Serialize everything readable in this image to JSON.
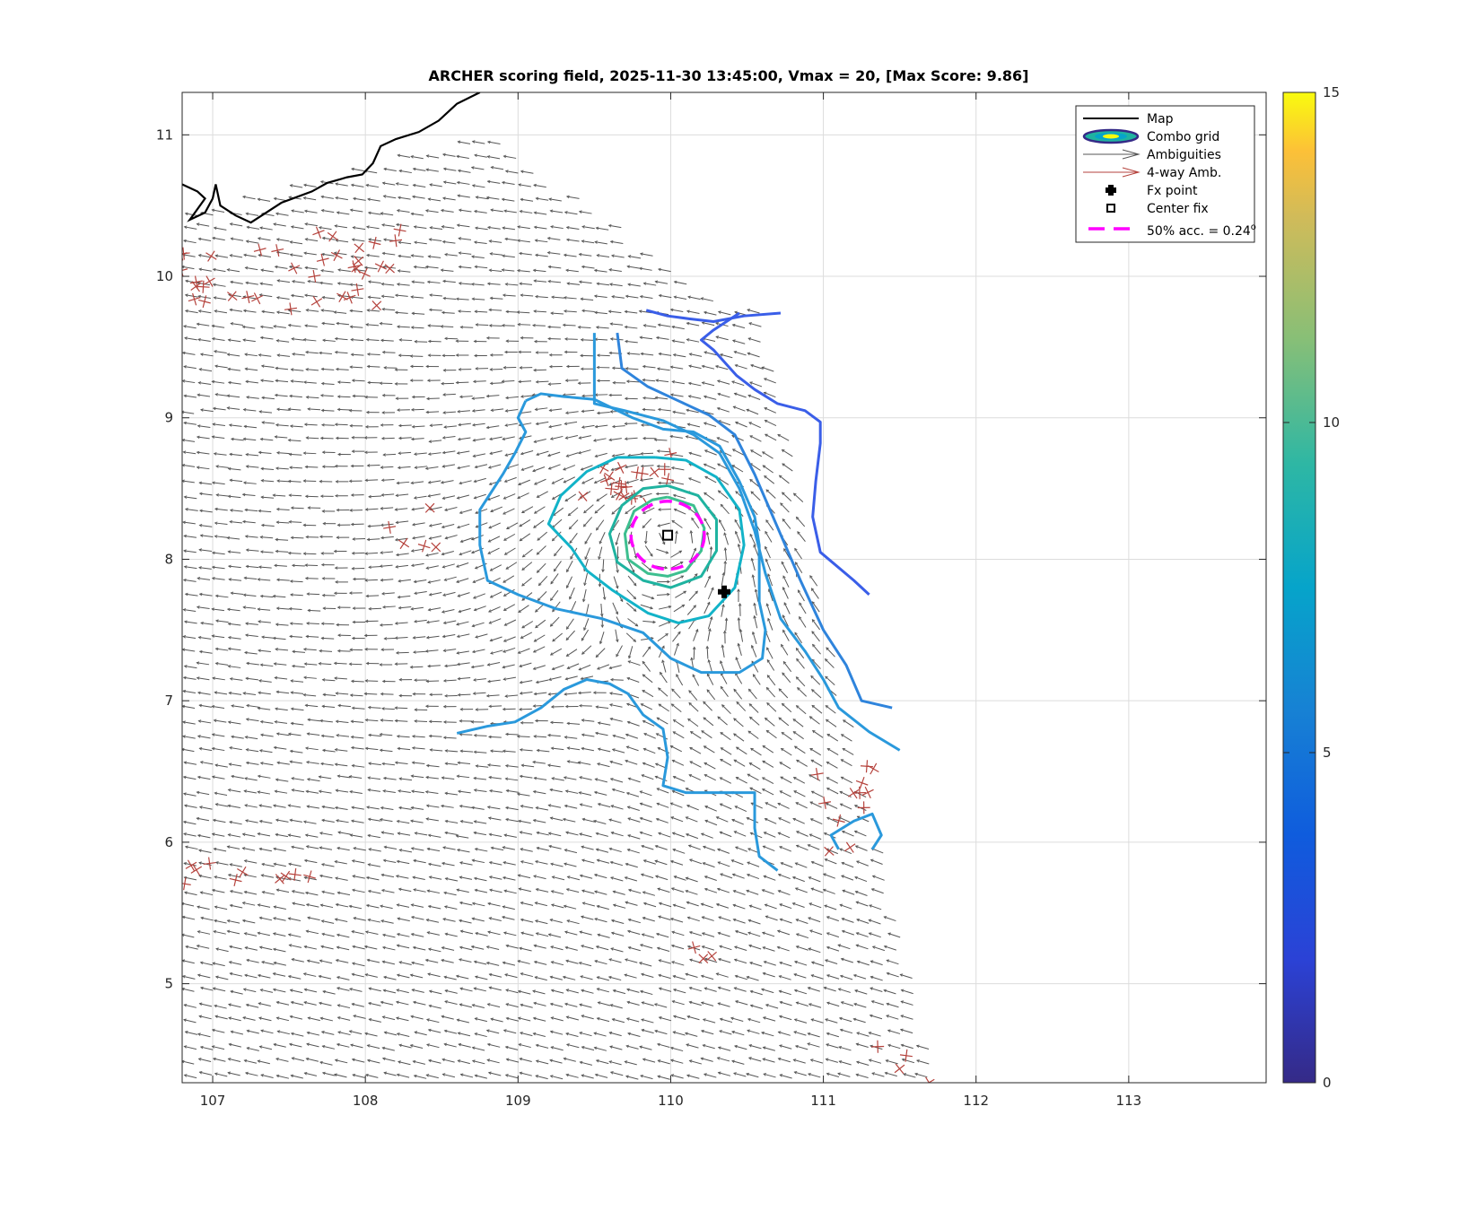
{
  "chart_data": {
    "type": "scatter",
    "title": "ARCHER scoring field, 2025-11-30 13:45:00, Vmax = 20, [Max Score: 9.86]",
    "xlim": [
      106.8,
      113.9
    ],
    "ylim": [
      4.3,
      11.3
    ],
    "xticks": [
      107,
      108,
      109,
      110,
      111,
      112,
      113
    ],
    "yticks": [
      5,
      6,
      7,
      8,
      9,
      10,
      11
    ],
    "grid": true,
    "colorbar": {
      "colormap": "parula",
      "range": [
        0,
        15
      ],
      "ticks": [
        0,
        5,
        10,
        15
      ]
    },
    "colors": {
      "map": "#000000",
      "ambiguities": "#555555",
      "four_way": "#b5423c",
      "accuracy_circle": "#ff00ff",
      "grid": "#dcdcdc"
    },
    "legend": {
      "position": "top-right",
      "entries": [
        {
          "label": "Map",
          "icon": "line-icon"
        },
        {
          "label": "Combo grid",
          "icon": "ellipse-contour-icon"
        },
        {
          "label": "Ambiguities",
          "icon": "arrow-icon"
        },
        {
          "label": "4-way Amb.",
          "icon": "arrow-icon"
        },
        {
          "label": "Fx point",
          "icon": "filled-cross-icon"
        },
        {
          "label": "Center fix",
          "icon": "open-square-icon"
        },
        {
          "label": "50% acc. = 0.24",
          "suffix": "o",
          "icon": "dashed-line-icon"
        }
      ]
    },
    "fx_point": [
      110.35,
      7.77
    ],
    "center_fix": [
      109.98,
      8.17
    ],
    "accuracy_circle": {
      "center": [
        109.98,
        8.17
      ],
      "radius_deg": 0.24
    },
    "coastline": [
      [
        106.8,
        10.65
      ],
      [
        106.9,
        10.6
      ],
      [
        106.95,
        10.55
      ],
      [
        106.85,
        10.4
      ],
      [
        106.95,
        10.45
      ],
      [
        107.0,
        10.55
      ],
      [
        107.02,
        10.65
      ],
      [
        107.05,
        10.5
      ],
      [
        107.15,
        10.43
      ],
      [
        107.25,
        10.38
      ],
      [
        107.35,
        10.45
      ],
      [
        107.45,
        10.52
      ],
      [
        107.55,
        10.56
      ],
      [
        107.65,
        10.6
      ],
      [
        107.75,
        10.66
      ],
      [
        107.88,
        10.7
      ],
      [
        107.98,
        10.72
      ],
      [
        108.05,
        10.8
      ],
      [
        108.1,
        10.92
      ],
      [
        108.2,
        10.97
      ],
      [
        108.35,
        11.02
      ],
      [
        108.48,
        11.1
      ],
      [
        108.6,
        11.22
      ],
      [
        108.75,
        11.3
      ]
    ],
    "contours": [
      {
        "level": 3.2,
        "color": "#3a5ee8",
        "points": [
          [
            109.84,
            9.76
          ],
          [
            109.98,
            9.72
          ],
          [
            110.12,
            9.7
          ],
          [
            110.28,
            9.68
          ],
          [
            110.48,
            9.72
          ],
          [
            110.72,
            9.74
          ]
        ]
      },
      {
        "level": 3.2,
        "color": "#3a5ee8",
        "points": [
          [
            110.45,
            9.74
          ],
          [
            110.28,
            9.62
          ],
          [
            110.2,
            9.55
          ],
          [
            110.28,
            9.48
          ],
          [
            110.43,
            9.3
          ],
          [
            110.55,
            9.2
          ],
          [
            110.7,
            9.1
          ],
          [
            110.88,
            9.05
          ],
          [
            110.98,
            8.97
          ],
          [
            110.98,
            8.82
          ],
          [
            110.95,
            8.55
          ],
          [
            110.93,
            8.3
          ],
          [
            110.98,
            8.05
          ],
          [
            111.2,
            7.85
          ],
          [
            111.3,
            7.75
          ]
        ]
      },
      {
        "level": 4.6,
        "color": "#2f84dc",
        "points": [
          [
            109.65,
            9.6
          ],
          [
            109.68,
            9.35
          ],
          [
            109.85,
            9.22
          ],
          [
            110.05,
            9.12
          ],
          [
            110.25,
            9.02
          ],
          [
            110.42,
            8.88
          ],
          [
            110.55,
            8.6
          ],
          [
            110.65,
            8.35
          ],
          [
            110.75,
            8.1
          ],
          [
            110.85,
            7.85
          ],
          [
            111.0,
            7.5
          ],
          [
            111.15,
            7.25
          ],
          [
            111.25,
            7.0
          ],
          [
            111.45,
            6.95
          ]
        ]
      },
      {
        "level": 5.5,
        "color": "#2a99dc",
        "points": [
          [
            109.5,
            9.6
          ],
          [
            109.5,
            9.35
          ],
          [
            109.5,
            9.1
          ],
          [
            109.7,
            9.05
          ],
          [
            109.95,
            8.98
          ],
          [
            110.15,
            8.88
          ],
          [
            110.32,
            8.75
          ],
          [
            110.45,
            8.5
          ],
          [
            110.55,
            8.2
          ],
          [
            110.62,
            7.9
          ],
          [
            110.72,
            7.58
          ],
          [
            110.88,
            7.35
          ],
          [
            111.0,
            7.15
          ],
          [
            111.1,
            6.95
          ],
          [
            111.3,
            6.78
          ],
          [
            111.5,
            6.65
          ]
        ]
      },
      {
        "level": 5.5,
        "color": "#2a99dc",
        "points": [
          [
            109.05,
            9.12
          ],
          [
            109.15,
            9.17
          ],
          [
            109.3,
            9.15
          ],
          [
            109.5,
            9.13
          ],
          [
            109.75,
            9.0
          ],
          [
            109.95,
            8.92
          ],
          [
            110.15,
            8.9
          ],
          [
            110.32,
            8.8
          ],
          [
            110.45,
            8.55
          ],
          [
            110.55,
            8.3
          ],
          [
            110.58,
            8.1
          ],
          [
            110.58,
            7.9
          ],
          [
            110.58,
            7.7
          ],
          [
            110.62,
            7.5
          ],
          [
            110.6,
            7.3
          ],
          [
            110.45,
            7.2
          ],
          [
            110.2,
            7.2
          ],
          [
            110.0,
            7.3
          ],
          [
            109.82,
            7.48
          ],
          [
            109.55,
            7.58
          ],
          [
            109.25,
            7.65
          ],
          [
            109.0,
            7.75
          ],
          [
            108.8,
            7.85
          ],
          [
            108.75,
            8.1
          ],
          [
            108.75,
            8.35
          ],
          [
            108.9,
            8.6
          ],
          [
            108.98,
            8.75
          ],
          [
            109.05,
            8.9
          ],
          [
            109.0,
            9.0
          ],
          [
            109.05,
            9.12
          ]
        ]
      },
      {
        "level": 5.5,
        "color": "#2a99dc",
        "points": [
          [
            108.6,
            6.77
          ],
          [
            108.8,
            6.82
          ],
          [
            108.98,
            6.85
          ],
          [
            109.15,
            6.95
          ],
          [
            109.3,
            7.08
          ],
          [
            109.45,
            7.15
          ],
          [
            109.6,
            7.12
          ],
          [
            109.72,
            7.05
          ],
          [
            109.82,
            6.9
          ],
          [
            109.95,
            6.8
          ],
          [
            109.98,
            6.6
          ],
          [
            109.95,
            6.4
          ],
          [
            110.1,
            6.35
          ],
          [
            110.3,
            6.35
          ],
          [
            110.55,
            6.35
          ],
          [
            110.55,
            6.1
          ],
          [
            110.58,
            5.9
          ],
          [
            110.7,
            5.8
          ]
        ]
      },
      {
        "level": 5.5,
        "color": "#2a99dc",
        "points": [
          [
            111.1,
            5.95
          ],
          [
            111.05,
            6.05
          ],
          [
            111.2,
            6.15
          ],
          [
            111.32,
            6.2
          ],
          [
            111.38,
            6.05
          ],
          [
            111.32,
            5.95
          ]
        ]
      },
      {
        "level": 6.8,
        "color": "#12b3c8",
        "points": [
          [
            109.9,
            8.72
          ],
          [
            110.1,
            8.7
          ],
          [
            110.3,
            8.58
          ],
          [
            110.45,
            8.35
          ],
          [
            110.48,
            8.1
          ],
          [
            110.42,
            7.8
          ],
          [
            110.25,
            7.6
          ],
          [
            110.05,
            7.55
          ],
          [
            109.85,
            7.62
          ],
          [
            109.62,
            7.78
          ],
          [
            109.45,
            7.92
          ],
          [
            109.35,
            8.08
          ],
          [
            109.2,
            8.25
          ],
          [
            109.28,
            8.45
          ],
          [
            109.45,
            8.62
          ],
          [
            109.65,
            8.72
          ],
          [
            109.9,
            8.72
          ]
        ]
      },
      {
        "level": 7.8,
        "color": "#1fb3a0",
        "points": [
          [
            109.98,
            8.52
          ],
          [
            110.18,
            8.45
          ],
          [
            110.3,
            8.28
          ],
          [
            110.3,
            8.06
          ],
          [
            110.2,
            7.88
          ],
          [
            110.0,
            7.8
          ],
          [
            109.82,
            7.85
          ],
          [
            109.65,
            7.98
          ],
          [
            109.6,
            8.18
          ],
          [
            109.68,
            8.38
          ],
          [
            109.82,
            8.5
          ],
          [
            109.98,
            8.52
          ]
        ]
      },
      {
        "level": 8.6,
        "color": "#3dbf8f",
        "points": [
          [
            109.98,
            8.44
          ],
          [
            110.15,
            8.38
          ],
          [
            110.22,
            8.22
          ],
          [
            110.2,
            8.06
          ],
          [
            110.1,
            7.92
          ],
          [
            109.98,
            7.88
          ],
          [
            109.85,
            7.9
          ],
          [
            109.72,
            8.0
          ],
          [
            109.7,
            8.18
          ],
          [
            109.76,
            8.34
          ],
          [
            109.88,
            8.42
          ],
          [
            109.98,
            8.44
          ]
        ]
      }
    ],
    "wind_field": {
      "arrow_count": 1300,
      "four_way_count": 90
    }
  }
}
